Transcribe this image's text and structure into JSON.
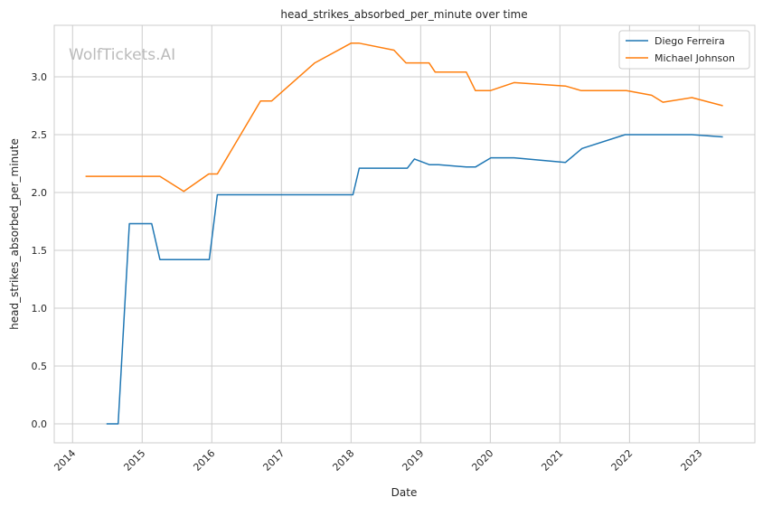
{
  "watermark": "WolfTickets.AI",
  "chart_data": {
    "type": "line",
    "title": "head_strikes_absorbed_per_minute over time",
    "xlabel": "Date",
    "ylabel": "head_strikes_absorbed_per_minute",
    "xlim": [
      "2013-09-27",
      "2023-10-20"
    ],
    "ylim": [
      -0.164,
      3.445
    ],
    "x_ticks": [
      "2014",
      "2015",
      "2016",
      "2017",
      "2018",
      "2019",
      "2020",
      "2021",
      "2022",
      "2023"
    ],
    "y_ticks": [
      0.0,
      0.5,
      1.0,
      1.5,
      2.0,
      2.5,
      3.0
    ],
    "y_tick_labels": [
      "0.0",
      "0.5",
      "1.0",
      "1.5",
      "2.0",
      "2.5",
      "3.0"
    ],
    "grid": true,
    "legend_position": "top-right",
    "series": [
      {
        "name": "Diego Ferreira",
        "color": "#1f77b4",
        "x": [
          "2014-06-28",
          "2014-08-28",
          "2014-10-26",
          "2015-02-20",
          "2015-04-04",
          "2015-12-19",
          "2016-01-30",
          "2018-01-11",
          "2018-02-13",
          "2018-10-23",
          "2018-11-29",
          "2019-02-17",
          "2019-04-05",
          "2019-08-28",
          "2019-10-15",
          "2020-01-04",
          "2020-05-05",
          "2021-01-30",
          "2021-04-27",
          "2021-12-09",
          "2022-11-24",
          "2023-05-05"
        ],
        "y": [
          0.0,
          0.0,
          1.73,
          1.73,
          1.42,
          1.42,
          1.98,
          1.98,
          2.21,
          2.21,
          2.29,
          2.24,
          2.24,
          2.22,
          2.22,
          2.3,
          2.3,
          2.26,
          2.38,
          2.5,
          2.5,
          2.48
        ]
      },
      {
        "name": "Michael Johnson",
        "color": "#ff7f0e",
        "x": [
          "2014-03-10",
          "2015-04-04",
          "2015-08-07",
          "2015-12-16",
          "2016-01-30",
          "2016-09-13",
          "2016-11-10",
          "2017-06-25",
          "2018-01-01",
          "2018-02-13",
          "2018-08-14",
          "2018-10-16",
          "2019-02-14",
          "2019-03-18",
          "2019-08-28",
          "2019-10-15",
          "2020-01-01",
          "2020-05-05",
          "2021-01-30",
          "2021-04-23",
          "2021-12-16",
          "2022-04-27",
          "2022-06-25",
          "2022-11-24",
          "2023-05-05"
        ],
        "y": [
          2.14,
          2.14,
          2.01,
          2.16,
          2.16,
          2.79,
          2.79,
          3.12,
          3.29,
          3.29,
          3.23,
          3.12,
          3.12,
          3.04,
          3.04,
          2.88,
          2.88,
          2.95,
          2.92,
          2.88,
          2.88,
          2.84,
          2.78,
          2.82,
          2.75
        ]
      }
    ]
  }
}
